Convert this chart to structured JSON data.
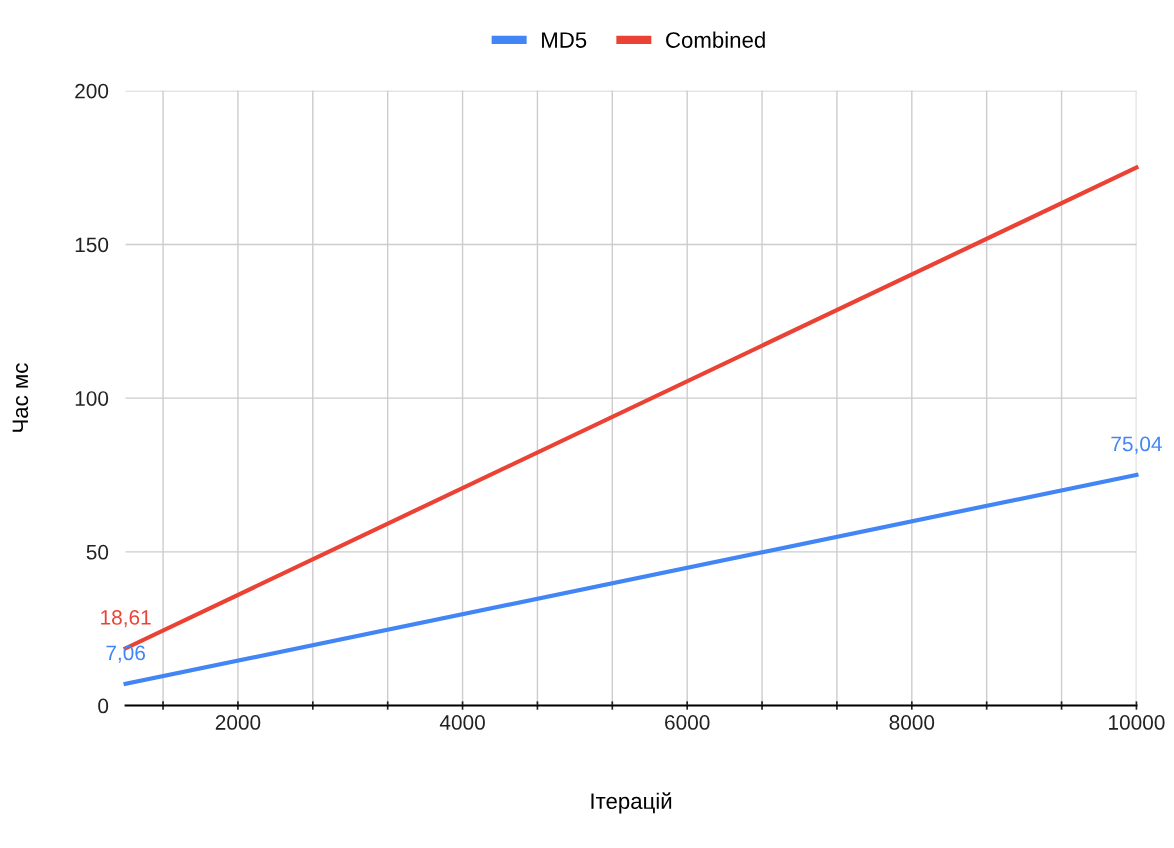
{
  "chart_data": {
    "type": "line",
    "xlabel": "Ітерацій",
    "ylabel": "Час мс",
    "xlim": [
      1000,
      10000
    ],
    "ylim": [
      0,
      200
    ],
    "xticks": [
      {
        "value": 1333.33,
        "label": null
      },
      2000,
      {
        "value": 2666.67,
        "label": null
      },
      {
        "value": 3333.33,
        "label": null
      },
      4000,
      {
        "value": 4666.67,
        "label": null
      },
      {
        "value": 5333.33,
        "label": null
      },
      6000,
      {
        "value": 6666.67,
        "label": null
      },
      {
        "value": 7333.33,
        "label": null
      },
      8000,
      {
        "value": 8666.67,
        "label": null
      },
      {
        "value": 9333.33,
        "label": null
      },
      10000
    ],
    "yticks": [
      0,
      50,
      100,
      150,
      200
    ],
    "x": [
      1000,
      10000
    ],
    "grid": true,
    "legend": "top",
    "marker": "none",
    "line_style": "solid",
    "series": [
      {
        "name": "MD5",
        "color": "#4285f4",
        "values": [
          7.06,
          75.04
        ],
        "value_labels": [
          "7,06",
          "75,04"
        ]
      },
      {
        "name": "Combined",
        "color": "#ea4335",
        "values": [
          18.61,
          175
        ],
        "value_labels": [
          "18,61",
          null
        ]
      }
    ]
  }
}
